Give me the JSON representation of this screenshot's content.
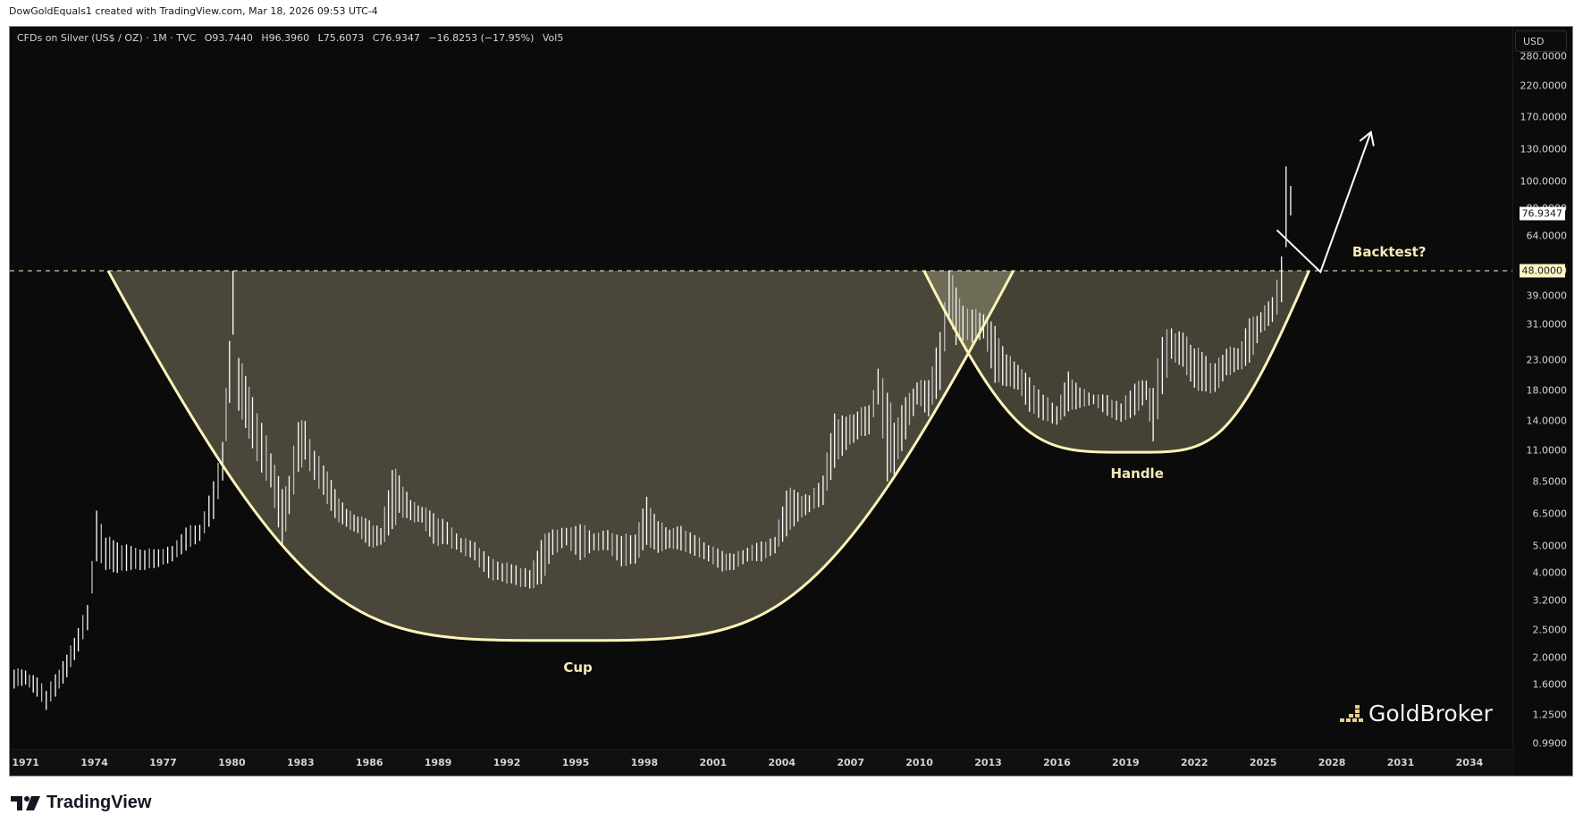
{
  "credit": "DowGoldEquals1 created with TradingView.com, Mar 18, 2026 09:53 UTC-4",
  "legend": {
    "symbol": "CFDs on Silver (US$ / OZ) · 1M · TVC",
    "open": "O93.7440",
    "high": "H96.3960",
    "low": "L75.6073",
    "close": "C76.9347",
    "change": "−16.8253 (−17.95%)",
    "vol": "Vol5"
  },
  "currency_button": "USD",
  "last_price_label": "76.9347",
  "level_label": "48.0000",
  "annotations": {
    "cup": "Cup",
    "handle": "Handle",
    "backtest": "Backtest?"
  },
  "watermark": "GoldBroker",
  "footer_brand": "TradingView",
  "colors": {
    "background": "#0b0b0b",
    "fill": "#4a473a",
    "fill_overlap": "#6e6b56",
    "curve": "#fff3b8",
    "bars": "#ffffff",
    "level_line": "#fff6c4",
    "annotation_text": "#f5e9b8"
  },
  "chart_data": {
    "type": "line",
    "title": "CFDs on Silver (US$ / OZ) · 1M · TVC",
    "xlabel": "",
    "ylabel": "USD (log scale)",
    "y_scale": "log",
    "ylim": [
      0.99,
      280
    ],
    "xlim": [
      1970.5,
      2037
    ],
    "x_ticks": [
      "1971",
      "1974",
      "1977",
      "1980",
      "1983",
      "1986",
      "1989",
      "1992",
      "1995",
      "1998",
      "2001",
      "2004",
      "2007",
      "2010",
      "2013",
      "2016",
      "2019",
      "2022",
      "2025",
      "2028",
      "2031",
      "2034"
    ],
    "y_ticks": [
      "280.0000",
      "220.0000",
      "170.0000",
      "130.0000",
      "100.0000",
      "80.0000",
      "64.0000",
      "48.0000",
      "39.0000",
      "31.0000",
      "23.0000",
      "18.0000",
      "14.0000",
      "11.0000",
      "8.5000",
      "6.5000",
      "5.0000",
      "4.0000",
      "3.2000",
      "2.5000",
      "2.0000",
      "1.6000",
      "1.2500",
      "0.9900"
    ],
    "grid": false,
    "legend_position": "top-left",
    "ohlc_last": {
      "open": 93.744,
      "high": 96.396,
      "low": 75.6073,
      "close": 76.9347,
      "change": -16.8253,
      "change_pct": -17.95
    },
    "series": [
      {
        "name": "Silver monthly (approx. bar high/low)",
        "x": [
          1970.5,
          1971.0,
          1971.5,
          1971.9,
          1972.3,
          1972.8,
          1973.3,
          1973.7,
          1974.1,
          1974.5,
          1975.0,
          1975.6,
          1976.2,
          1976.8,
          1977.4,
          1978.0,
          1978.6,
          1979.2,
          1979.6,
          1979.9,
          1980.05,
          1980.3,
          1980.6,
          1980.9,
          1981.3,
          1981.7,
          1982.2,
          1982.5,
          1982.9,
          1983.2,
          1983.6,
          1984.0,
          1984.5,
          1985.0,
          1985.5,
          1986.0,
          1986.5,
          1987.0,
          1987.3,
          1987.8,
          1988.3,
          1988.8,
          1989.4,
          1990.0,
          1990.6,
          1991.2,
          1991.8,
          1992.4,
          1993.0,
          1993.5,
          1994.0,
          1994.6,
          1995.2,
          1995.8,
          1996.4,
          1997.0,
          1997.6,
          1998.1,
          1998.6,
          1999.1,
          1999.6,
          2000.2,
          2000.8,
          2001.4,
          2001.9,
          2002.5,
          2003.1,
          2003.7,
          2004.2,
          2004.7,
          2005.2,
          2005.8,
          2006.3,
          2006.8,
          2007.3,
          2007.8,
          2008.2,
          2008.6,
          2008.9,
          2009.4,
          2009.9,
          2010.4,
          2010.9,
          2011.3,
          2011.6,
          2011.9,
          2012.3,
          2012.8,
          2013.3,
          2013.8,
          2014.3,
          2014.8,
          2015.4,
          2016.0,
          2016.5,
          2017.0,
          2017.6,
          2018.2,
          2018.8,
          2019.4,
          2019.9,
          2020.2,
          2020.6,
          2021.0,
          2021.5,
          2022.0,
          2022.5,
          2022.9,
          2023.4,
          2023.9,
          2024.4,
          2024.9,
          2025.4,
          2025.8,
          2026.0,
          2026.2
        ],
        "high": [
          1.85,
          1.8,
          1.7,
          1.55,
          1.75,
          2.05,
          2.6,
          3.1,
          6.7,
          5.5,
          5.2,
          5.0,
          4.9,
          4.9,
          5.0,
          5.9,
          6.0,
          8.5,
          12.0,
          28.0,
          48.0,
          24.0,
          21.0,
          17.0,
          14.0,
          11.0,
          8.0,
          9.0,
          14.5,
          14.0,
          11.0,
          10.0,
          8.0,
          6.8,
          6.5,
          6.2,
          5.8,
          10.0,
          9.0,
          7.3,
          7.0,
          6.6,
          6.1,
          5.4,
          5.2,
          4.6,
          4.4,
          4.3,
          4.1,
          5.4,
          5.8,
          5.8,
          6.1,
          5.6,
          5.7,
          5.5,
          5.6,
          7.5,
          6.2,
          5.8,
          5.9,
          5.5,
          5.1,
          4.8,
          4.7,
          5.0,
          5.2,
          5.4,
          8.3,
          7.8,
          7.6,
          9.2,
          15.0,
          14.5,
          15.5,
          16.0,
          21.5,
          19.0,
          14.0,
          17.0,
          19.5,
          19.8,
          29.0,
          49.8,
          43.0,
          36.0,
          35.5,
          34.0,
          30.5,
          24.5,
          22.5,
          20.0,
          17.5,
          16.0,
          21.0,
          18.5,
          17.5,
          17.3,
          16.2,
          19.6,
          19.5,
          18.5,
          29.8,
          30.0,
          29.0,
          26.5,
          24.0,
          22.5,
          26.0,
          25.5,
          32.5,
          34.8,
          39.0,
          54.0,
          121.0,
          96.4
        ],
        "low": [
          1.55,
          1.6,
          1.45,
          1.3,
          1.45,
          1.7,
          2.1,
          2.5,
          4.4,
          4.1,
          4.0,
          4.1,
          4.1,
          4.2,
          4.4,
          4.8,
          5.2,
          6.2,
          8.5,
          16.0,
          28.0,
          15.0,
          13.0,
          11.0,
          9.0,
          8.0,
          4.9,
          6.4,
          9.0,
          10.0,
          8.5,
          7.5,
          6.2,
          5.8,
          5.5,
          4.9,
          5.0,
          5.5,
          6.4,
          6.1,
          6.0,
          5.0,
          5.0,
          4.7,
          4.4,
          3.8,
          3.7,
          3.6,
          3.5,
          3.6,
          4.6,
          5.0,
          4.4,
          4.8,
          4.8,
          4.2,
          4.3,
          5.0,
          4.7,
          4.9,
          4.8,
          4.6,
          4.4,
          4.05,
          4.1,
          4.4,
          4.4,
          4.7,
          5.4,
          6.1,
          6.6,
          7.0,
          9.5,
          11.0,
          12.0,
          12.5,
          16.0,
          8.5,
          9.0,
          12.0,
          16.0,
          14.5,
          18.0,
          32.0,
          26.0,
          27.0,
          26.5,
          27.5,
          19.0,
          18.5,
          18.0,
          15.0,
          14.0,
          13.5,
          15.0,
          15.5,
          16.0,
          14.5,
          13.8,
          14.5,
          16.5,
          11.6,
          17.0,
          23.0,
          21.5,
          18.0,
          17.5,
          17.5,
          20.0,
          21.0,
          22.0,
          28.5,
          31.0,
          36.0,
          55.0,
          75.6
        ]
      }
    ],
    "overlays": [
      {
        "type": "cup_arc",
        "label": "Cup",
        "start_x": 1974.6,
        "end_x": 2014.1,
        "rim_y": 48,
        "bottom_x": 1994.6,
        "bottom_y": 2.3
      },
      {
        "type": "handle_arc",
        "label": "Handle",
        "start_x": 2010.2,
        "end_x": 2027.0,
        "rim_y": 48,
        "bottom_x": 2019.3,
        "bottom_y": 10.8
      },
      {
        "type": "horizontal_line",
        "y": 48,
        "style": "dashed"
      },
      {
        "type": "path_arrow",
        "label": "Backtest?",
        "points": [
          [
            2025.6,
            67
          ],
          [
            2027.5,
            47.5
          ],
          [
            2029.7,
            150
          ]
        ]
      }
    ]
  }
}
